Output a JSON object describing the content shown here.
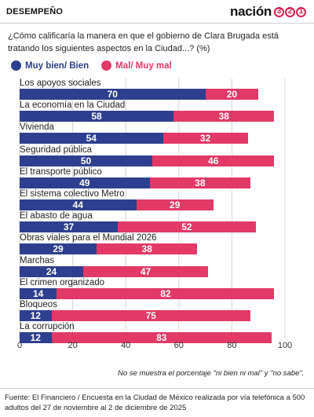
{
  "header": {
    "section": "DESEMPEÑO",
    "logo_word": "nación",
    "logo_digits": [
      "3",
      "2",
      "1"
    ]
  },
  "question": "¿Cómo calificaría la manera en que el gobierno de Clara Brugada está tratando los siguientes aspectos en la Ciudad...? (%)",
  "legend": {
    "positive": "Muy bien/ Bien",
    "negative": "Mal/ Muy mal"
  },
  "colors": {
    "positive": "#2d3f8e",
    "negative": "#e23966"
  },
  "chart_data": {
    "type": "bar",
    "orientation": "horizontal",
    "stacked": true,
    "categories": [
      "Los apoyos sociales",
      "La economía en la Ciudad",
      "Vivienda",
      "Seguridad pública",
      "El transporte público",
      "El sistema colectivo Metro",
      "El abasto de agua",
      "Obras viales para el Mundial 2026",
      "Marchas",
      "El crimen organizado",
      "Bloqueos",
      "La corrupción"
    ],
    "series": [
      {
        "name": "Muy bien/ Bien",
        "values": [
          70,
          58,
          54,
          50,
          49,
          44,
          37,
          29,
          24,
          14,
          12,
          12
        ]
      },
      {
        "name": "Mal/ Muy mal",
        "values": [
          20,
          38,
          32,
          46,
          38,
          29,
          52,
          38,
          47,
          82,
          75,
          83
        ]
      }
    ],
    "xlim": [
      0,
      100
    ],
    "xticks": [
      "0",
      "20",
      "40",
      "60",
      "80",
      "100"
    ],
    "grid": true,
    "legend_position": "top-left"
  },
  "footnote": "No se muestra el porcentaje \"ni bien ni mal\" y \"no sabe\".",
  "source": "Fuente: El Financiero / Encuesta en la Ciudad de México realizada por vía telefónica a 500 adultos del 27 de noviembre al 2 de diciembre de 2025"
}
